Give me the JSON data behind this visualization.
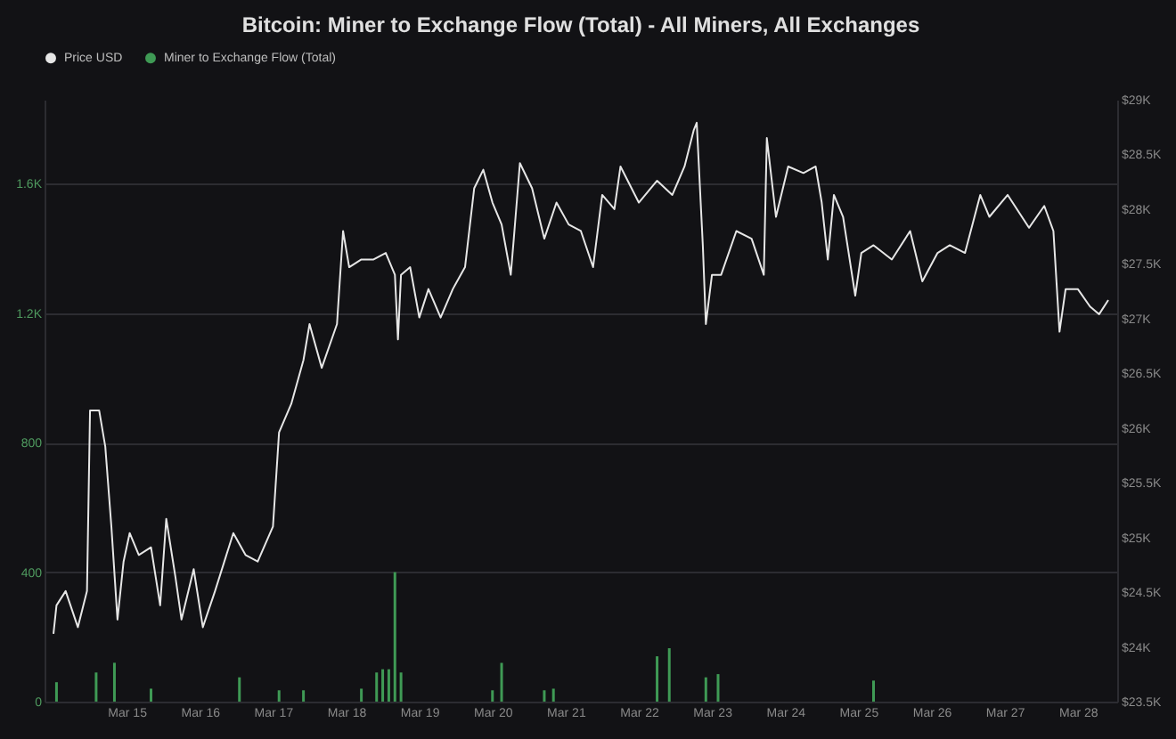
{
  "chart_data": {
    "type": "line",
    "title": "Bitcoin: Miner to Exchange Flow (Total) - All Miners, All Exchanges",
    "xlim": [
      "--03-14T00:00",
      "--03-28T10:00"
    ],
    "xticks": [
      {
        "value": "--03-15T00:00",
        "label": "Mar 15"
      },
      {
        "value": "--03-16T00:00",
        "label": "Mar 16"
      },
      {
        "value": "--03-17T00:00",
        "label": "Mar 17"
      },
      {
        "value": "--03-18T00:00",
        "label": "Mar 18"
      },
      {
        "value": "--03-19T00:00",
        "label": "Mar 19"
      },
      {
        "value": "--03-20T00:00",
        "label": "Mar 20"
      },
      {
        "value": "--03-21T00:00",
        "label": "Mar 21"
      },
      {
        "value": "--03-22T00:00",
        "label": "Mar 22"
      },
      {
        "value": "--03-23T00:00",
        "label": "Mar 23"
      },
      {
        "value": "--03-24T00:00",
        "label": "Mar 24"
      },
      {
        "value": "--03-25T00:00",
        "label": "Mar 25"
      },
      {
        "value": "--03-26T00:00",
        "label": "Mar 26"
      },
      {
        "value": "--03-27T00:00",
        "label": "Mar 27"
      },
      {
        "value": "--03-28T00:00",
        "label": "Mar 28"
      }
    ],
    "ylim": [
      0,
      1860
    ],
    "yticks": [
      0,
      400,
      800,
      {
        "value": 1200,
        "label": "1.2K"
      },
      {
        "value": 1600,
        "label": "1.6K"
      }
    ],
    "y2lim": [
      23500,
      29000
    ],
    "y2ticks": [
      {
        "value": 23500,
        "label": "$23.5K"
      },
      {
        "value": 24000,
        "label": "$24K"
      },
      {
        "value": 24500,
        "label": "$24.5K"
      },
      {
        "value": 25000,
        "label": "$25K"
      },
      {
        "value": 25500,
        "label": "$25.5K"
      },
      {
        "value": 26000,
        "label": "$26K"
      },
      {
        "value": 26500,
        "label": "$26.5K"
      },
      {
        "value": 27000,
        "label": "$27K"
      },
      {
        "value": 27500,
        "label": "$27.5K"
      },
      {
        "value": 28000,
        "label": "$28K"
      },
      {
        "value": 28500,
        "label": "$28.5K"
      },
      {
        "value": 29000,
        "label": "$29K"
      }
    ],
    "grid": "y",
    "legend": "top",
    "series": [
      {
        "name": "Price USD",
        "axis": "y2",
        "color": "#e6e6e6",
        "x": [
          "--03-14T00:00",
          "--03-14T01:00",
          "--03-14T04:00",
          "--03-14T08:00",
          "--03-14T11:00",
          "--03-14T12:00",
          "--03-14T15:00",
          "--03-14T17:00",
          "--03-14T19:00",
          "--03-14T21:00",
          "--03-14T23:00",
          "--03-15T01:00",
          "--03-15T04:00",
          "--03-15T08:00",
          "--03-15T11:00",
          "--03-15T13:00",
          "--03-15T16:00",
          "--03-15T18:00",
          "--03-15T22:00",
          "--03-16T01:00",
          "--03-16T05:00",
          "--03-16T11:00",
          "--03-16T15:00",
          "--03-16T19:00",
          "--03-17T00:00",
          "--03-17T02:00",
          "--03-17T06:00",
          "--03-17T10:00",
          "--03-17T12:00",
          "--03-17T16:00",
          "--03-17T21:00",
          "--03-17T23:00",
          "--03-18T01:00",
          "--03-18T05:00",
          "--03-18T09:00",
          "--03-18T13:00",
          "--03-18T16:00",
          "--03-18T17:00",
          "--03-18T18:00",
          "--03-18T21:00",
          "--03-19T00:00",
          "--03-19T03:00",
          "--03-19T07:00",
          "--03-19T11:00",
          "--03-19T15:00",
          "--03-19T18:00",
          "--03-19T21:00",
          "--03-20T00:00",
          "--03-20T03:00",
          "--03-20T06:00",
          "--03-20T07:00",
          "--03-20T09:00",
          "--03-20T13:00",
          "--03-20T17:00",
          "--03-20T21:00",
          "--03-21T01:00",
          "--03-21T05:00",
          "--03-21T09:00",
          "--03-21T12:00",
          "--03-21T16:00",
          "--03-21T18:00",
          "--03-22T00:00",
          "--03-22T06:00",
          "--03-22T11:00",
          "--03-22T15:00",
          "--03-22T18:00",
          "--03-22T19:00",
          "--03-22T21:00",
          "--03-22T22:00",
          "--03-23T00:00",
          "--03-23T03:00",
          "--03-23T08:00",
          "--03-23T13:00",
          "--03-23T17:00",
          "--03-23T18:00",
          "--03-23T21:00",
          "--03-24T01:00",
          "--03-24T06:00",
          "--03-24T10:00",
          "--03-24T12:00",
          "--03-24T14:00",
          "--03-24T16:00",
          "--03-24T19:00",
          "--03-24T23:00",
          "--03-25T01:00",
          "--03-25T05:00",
          "--03-25T11:00",
          "--03-25T17:00",
          "--03-25T21:00",
          "--03-26T02:00",
          "--03-26T06:00",
          "--03-26T11:00",
          "--03-26T16:00",
          "--03-26T19:00",
          "--03-27T01:00",
          "--03-27T08:00",
          "--03-27T13:00",
          "--03-27T16:00",
          "--03-27T18:00",
          "--03-27T20:00",
          "--03-28T00:00",
          "--03-28T04:00",
          "--03-28T07:00",
          "--03-28T10:00"
        ],
        "values": [
          24120,
          24380,
          24510,
          24180,
          24510,
          26160,
          26160,
          25830,
          25100,
          24250,
          24780,
          25040,
          24840,
          24910,
          24380,
          25170,
          24640,
          24250,
          24710,
          24180,
          24510,
          25040,
          24840,
          24780,
          25100,
          25960,
          26220,
          26620,
          26950,
          26550,
          26950,
          27800,
          27470,
          27540,
          27540,
          27600,
          27400,
          26810,
          27400,
          27470,
          27010,
          27270,
          27010,
          27270,
          27470,
          28190,
          28360,
          28060,
          27860,
          27400,
          27730,
          28420,
          28190,
          27730,
          28060,
          27860,
          27800,
          27470,
          28130,
          28000,
          28390,
          28060,
          28260,
          28130,
          28390,
          28720,
          28790,
          27670,
          26950,
          27400,
          27400,
          27800,
          27730,
          27400,
          28650,
          27930,
          28390,
          28330,
          28390,
          28060,
          27540,
          28130,
          27930,
          27210,
          27600,
          27670,
          27540,
          27800,
          27340,
          27600,
          27670,
          27600,
          28130,
          27930,
          28130,
          27830,
          28030,
          27800,
          26880,
          27270,
          27270,
          27110,
          27040,
          27170
        ]
      },
      {
        "name": "Miner to Exchange Flow (Total)",
        "type": "bar",
        "axis": "y",
        "color": "#3f9a55",
        "x": [
          "--03-14T01:00",
          "--03-14T14:00",
          "--03-14T20:00",
          "--03-15T08:00",
          "--03-16T13:00",
          "--03-17T02:00",
          "--03-17T10:00",
          "--03-18T05:00",
          "--03-18T10:00",
          "--03-18T12:00",
          "--03-18T14:00",
          "--03-18T16:00",
          "--03-18T18:00",
          "--03-20T00:00",
          "--03-20T03:00",
          "--03-20T17:00",
          "--03-20T20:00",
          "--03-22T06:00",
          "--03-22T10:00",
          "--03-22T22:00",
          "--03-23T02:00",
          "--03-25T05:00"
        ],
        "values": [
          60,
          90,
          120,
          40,
          75,
          35,
          35,
          40,
          90,
          100,
          100,
          400,
          90,
          35,
          120,
          35,
          40,
          140,
          165,
          75,
          85,
          65
        ]
      }
    ]
  }
}
